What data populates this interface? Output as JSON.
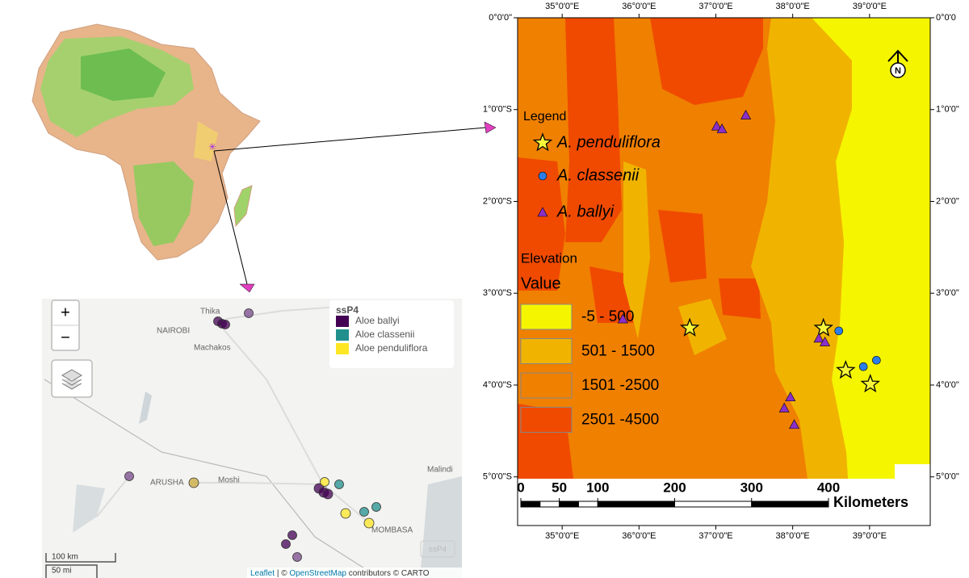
{
  "inset_map": {
    "zoom_in": "+",
    "zoom_out": "−",
    "legend_title": "ssP4",
    "legend": [
      {
        "name": "Aloe ballyi",
        "color": "#440154"
      },
      {
        "name": "Aloe classenii",
        "color": "#21908d"
      },
      {
        "name": "Aloe penduliflora",
        "color": "#fde725"
      }
    ],
    "places": [
      "Thika",
      "NAIROBI",
      "Machakos",
      "ARUSHA",
      "Moshi",
      "Malindi",
      "MOMBASA"
    ],
    "scale": [
      "100 km",
      "50 mi"
    ],
    "badge": "ssP4",
    "attribution": {
      "leaflet": "Leaflet",
      "separator": "| ©",
      "osm": "OpenStreetMap",
      "rest": "contributors © CARTO"
    }
  },
  "main_map": {
    "xlim": [
      34.42,
      39.79
    ],
    "ylim": [
      0,
      5.53
    ],
    "lon_ticks": [
      {
        "value": 35,
        "label": "35°0'0\"E"
      },
      {
        "value": 36,
        "label": "36°0'0\"E"
      },
      {
        "value": 37,
        "label": "37°0'0\"E"
      },
      {
        "value": 38,
        "label": "38°0'0\"E"
      },
      {
        "value": 39,
        "label": "39°0'0\"E"
      }
    ],
    "lat_ticks_left": [
      {
        "value": 0,
        "label": "0°0'0\""
      },
      {
        "value": 1,
        "label": "1°0'0\"S"
      },
      {
        "value": 2,
        "label": "2°0'0\"S"
      },
      {
        "value": 3,
        "label": "3°0'0\"S"
      },
      {
        "value": 4,
        "label": "4°0'0\"S"
      },
      {
        "value": 5,
        "label": "5°0'0\"S"
      }
    ],
    "lat_ticks_right": [
      {
        "value": 0,
        "label": "0°0'0"
      },
      {
        "value": 1,
        "label": "1°0'0\""
      },
      {
        "value": 2,
        "label": "2°0'0\""
      },
      {
        "value": 3,
        "label": "3°0'0\""
      },
      {
        "value": 4,
        "label": "4°0'0\""
      },
      {
        "value": 5,
        "label": "5°0'0\""
      }
    ],
    "legend_title": "Legend",
    "series": [
      {
        "name": "A. penduliflora",
        "marker": "star",
        "color": "#f7f53a",
        "lon": [
          36.66,
          38.4,
          38.69,
          39.01
        ],
        "lat": [
          3.38,
          3.38,
          3.84,
          3.99
        ]
      },
      {
        "name": "A. classenii",
        "marker": "circle",
        "color": "#2b7de9",
        "lon": [
          38.6,
          38.92,
          39.09
        ],
        "lat": [
          3.41,
          3.8,
          3.73
        ]
      },
      {
        "name": "A. ballyi",
        "marker": "triangle",
        "color": "#8b2fc9",
        "lon": [
          37.01,
          37.08,
          37.39,
          35.79,
          38.34,
          38.42,
          37.97,
          37.89,
          38.02
        ],
        "lat": [
          1.18,
          1.21,
          1.06,
          3.28,
          3.49,
          3.53,
          4.13,
          4.25,
          4.43
        ]
      }
    ],
    "elevation_title": "Elevation",
    "value_title": "Value",
    "classes": [
      {
        "label": "-5 - 500",
        "color": "#f5f500"
      },
      {
        "label": "501 - 1500",
        "color": "#f0b400"
      },
      {
        "label": "1501 -2500",
        "color": "#f08000"
      },
      {
        "label": "2501 -4500",
        "color": "#f04a00"
      }
    ],
    "scale_ticks": [
      0,
      50,
      100,
      200,
      300,
      400
    ],
    "scale_unit": "Kilometers",
    "north": "N"
  }
}
